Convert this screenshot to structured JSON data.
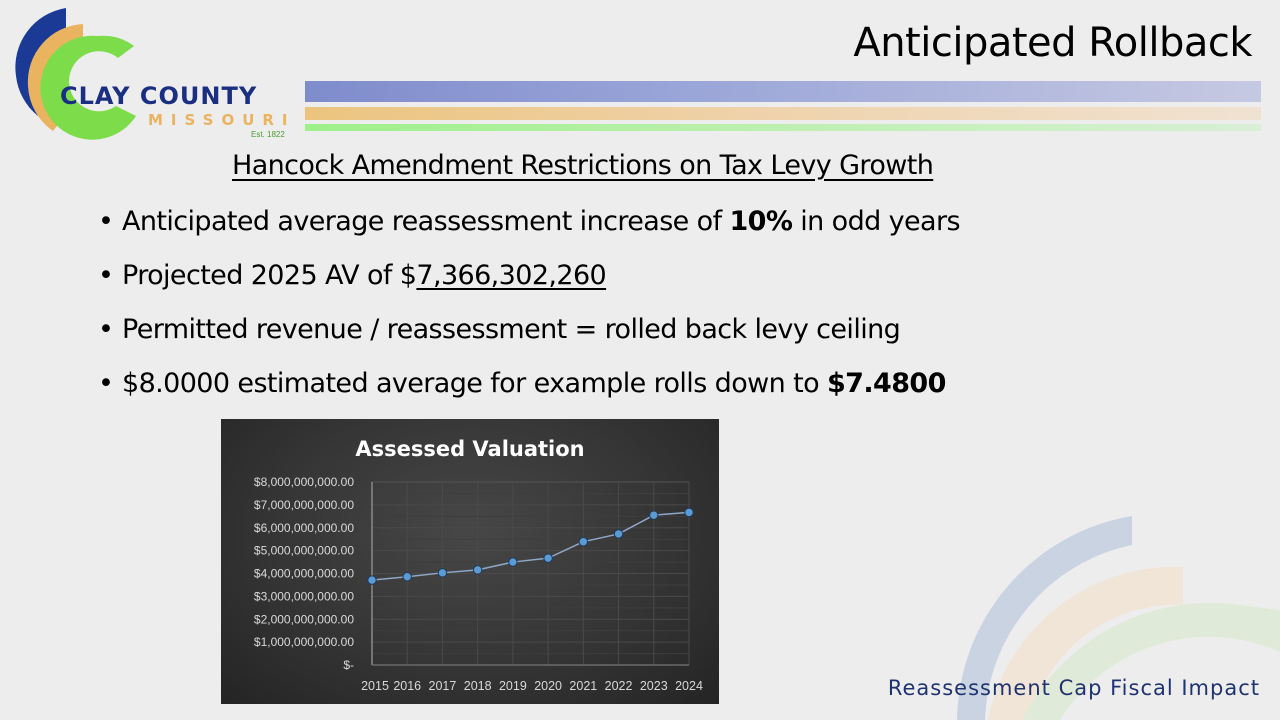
{
  "logo": {
    "name": "CLAY COUNTY",
    "subname": "MISSOURI",
    "est": "Est. 1822",
    "colors": {
      "blue": "#1b3a96",
      "orange": "#e9b35f",
      "green": "#7ddc4a"
    }
  },
  "slide": {
    "title": "Anticipated Rollback",
    "subtitle": "Hancock Amendment Restrictions on Tax Levy Growth",
    "bullets": [
      {
        "pre": "Anticipated average reassessment increase of ",
        "strong": "10%",
        "post": " in odd years"
      },
      {
        "pre": "Projected 2025 AV of $",
        "underline": "7,366,302,260"
      },
      {
        "text": "Permitted revenue / reassessment = rolled back levy ceiling"
      },
      {
        "pre": "$8.0000 estimated average for example rolls down to ",
        "strong": "$7.4800"
      }
    ],
    "bullet_glyph": "•",
    "footer": "Reassessment Cap Fiscal Impact"
  },
  "chart_data": {
    "type": "line",
    "title": "Assessed Valuation",
    "xlabel": "",
    "ylabel": "",
    "categories": [
      "2015",
      "2016",
      "2017",
      "2018",
      "2019",
      "2020",
      "2021",
      "2022",
      "2023",
      "2024"
    ],
    "values": [
      3710000000,
      3860000000,
      4030000000,
      4160000000,
      4500000000,
      4670000000,
      5390000000,
      5730000000,
      6550000000,
      6670000000
    ],
    "ylim": [
      0,
      8000000000
    ],
    "y_ticks": [
      "$-",
      "$1,000,000,000.00",
      "$2,000,000,000.00",
      "$3,000,000,000.00",
      "$4,000,000,000.00",
      "$5,000,000,000.00",
      "$6,000,000,000.00",
      "$7,000,000,000.00",
      "$8,000,000,000.00"
    ],
    "grid": true,
    "legend": "none",
    "colors": {
      "line": "#8fa8c8",
      "marker": "#5b9bd5",
      "background": "#353535",
      "text": "#d9d9d9"
    }
  }
}
